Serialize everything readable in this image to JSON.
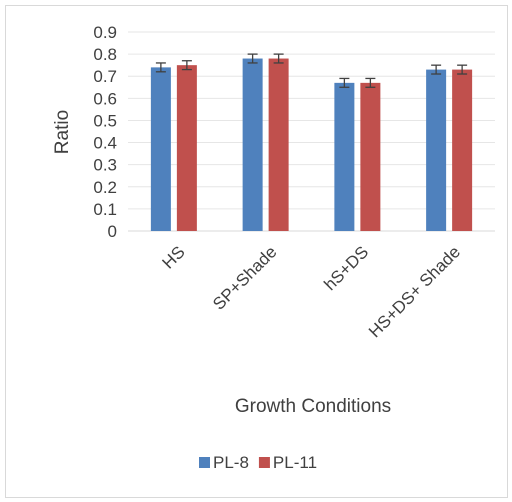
{
  "chart_data": {
    "type": "bar",
    "title": "",
    "xlabel": "Growth Conditions",
    "ylabel": "Ratio",
    "ylim": [
      0,
      0.9
    ],
    "yticks": [
      "0",
      "0.1",
      "0.2",
      "0.3",
      "0.4",
      "0.5",
      "0.6",
      "0.7",
      "0.8",
      "0.9"
    ],
    "categories": [
      "HS",
      "SP+Shade",
      "hS+DS",
      "HS+DS+ Shade"
    ],
    "series": [
      {
        "name": "PL-8",
        "color": "#4f81bd",
        "values": [
          0.74,
          0.78,
          0.67,
          0.73
        ],
        "errors": [
          0.02,
          0.02,
          0.02,
          0.02
        ]
      },
      {
        "name": "PL-11",
        "color": "#c0504d",
        "values": [
          0.75,
          0.78,
          0.67,
          0.73
        ],
        "errors": [
          0.02,
          0.02,
          0.02,
          0.02
        ]
      }
    ],
    "grid": true,
    "legend_position": "bottom"
  }
}
